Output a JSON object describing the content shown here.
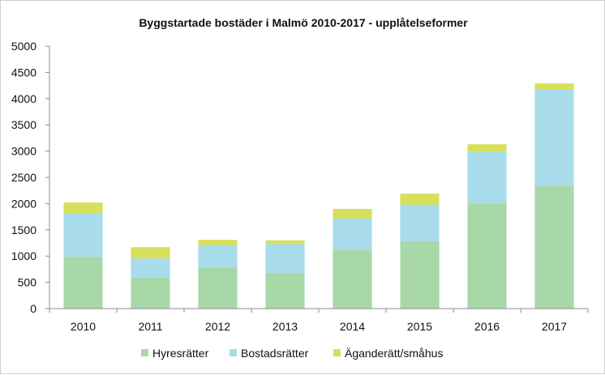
{
  "chart_data": {
    "type": "bar",
    "stacked": true,
    "title": "Byggstartade bostäder i Malmö 2010-2017 - upplåtelseformer",
    "xlabel": "",
    "ylabel": "",
    "categories": [
      "2010",
      "2011",
      "2012",
      "2013",
      "2014",
      "2015",
      "2016",
      "2017"
    ],
    "series": [
      {
        "name": "Hyresrätter",
        "color": "#a8d8a8",
        "values": [
          990,
          590,
          790,
          680,
          1120,
          1280,
          2010,
          2340
        ]
      },
      {
        "name": "Bostadsrätter",
        "color": "#a8dcea",
        "values": [
          830,
          370,
          420,
          550,
          600,
          700,
          980,
          1840
        ]
      },
      {
        "name": "Äganderätt/småhus",
        "color": "#d6e05a",
        "values": [
          200,
          210,
          100,
          70,
          180,
          210,
          140,
          110
        ]
      }
    ],
    "ylim": [
      0,
      5000
    ],
    "yticks": [
      "0",
      "500",
      "1000",
      "1500",
      "2000",
      "2500",
      "3000",
      "3500",
      "4000",
      "4500",
      "5000"
    ],
    "grid": false,
    "legend_position": "bottom"
  }
}
